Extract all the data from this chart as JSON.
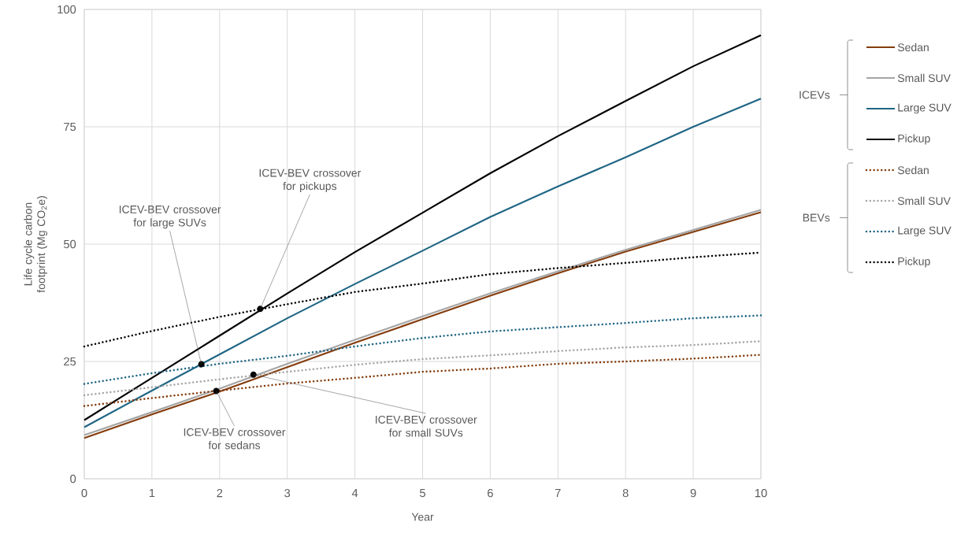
{
  "chart_data": {
    "type": "line",
    "xlabel": "Year",
    "ylabel": "Life cycle carbon footprint (Mg CO$_{2}$e)",
    "x": [
      0,
      1,
      2,
      3,
      4,
      5,
      6,
      7,
      8,
      9,
      10
    ],
    "xlim": [
      0,
      10
    ],
    "xticks": [
      0,
      1,
      2,
      3,
      4,
      5,
      6,
      7,
      8,
      9,
      10
    ],
    "ylim": [
      0,
      100
    ],
    "yticks": [
      0,
      25,
      50,
      75,
      100
    ],
    "grid": true,
    "legend": "right",
    "marker": "none",
    "series": [
      {
        "name": "Sedan",
        "color": "#843c0c",
        "line_style": "solid",
        "values": [
          8.7,
          13.7,
          18.6,
          23.8,
          29.0,
          34.0,
          39.0,
          43.8,
          48.4,
          52.6,
          56.8
        ]
      },
      {
        "name": "Small SUV",
        "color": "#a5a5a5",
        "line_style": "solid",
        "values": [
          9.3,
          14.2,
          19.2,
          24.5,
          29.6,
          34.6,
          39.5,
          44.2,
          48.8,
          53.0,
          57.3
        ]
      },
      {
        "name": "Large SUV",
        "color": "#1f6584",
        "line_style": "solid",
        "values": [
          11.0,
          18.8,
          26.5,
          34.2,
          41.5,
          48.6,
          55.8,
          62.3,
          68.5,
          75.0,
          81.0
        ]
      },
      {
        "name": "Pickup",
        "color": "#000000",
        "line_style": "solid",
        "values": [
          12.5,
          21.5,
          30.5,
          39.5,
          48.3,
          56.7,
          65.1,
          73.0,
          80.5,
          87.9,
          94.5
        ]
      },
      {
        "name": "Sedan",
        "color": "#843c0c",
        "line_style": "dotted",
        "values": [
          15.5,
          17.2,
          18.8,
          20.3,
          21.5,
          22.8,
          23.5,
          24.5,
          25.0,
          25.6,
          26.4
        ]
      },
      {
        "name": "Small SUV",
        "color": "#a5a5a5",
        "line_style": "dotted",
        "values": [
          17.8,
          19.5,
          21.2,
          22.8,
          24.3,
          25.5,
          26.3,
          27.2,
          28.0,
          28.5,
          29.3
        ]
      },
      {
        "name": "Large SUV",
        "color": "#1f6584",
        "line_style": "dotted",
        "values": [
          20.2,
          22.5,
          24.5,
          26.2,
          28.2,
          30.0,
          31.4,
          32.3,
          33.2,
          34.2,
          34.8
        ]
      },
      {
        "name": "Pickup",
        "color": "#000000",
        "line_style": "dotted",
        "values": [
          28.2,
          31.5,
          34.5,
          37.2,
          39.8,
          41.6,
          43.6,
          44.9,
          46.0,
          47.2,
          48.2
        ]
      }
    ],
    "annotations": [
      {
        "text": "ICEV-BEV crossover for large SUVs",
        "x": 1.73,
        "y": 24.4
      },
      {
        "text": "ICEV-BEV crossover for pickups",
        "x": 2.6,
        "y": 36.2
      },
      {
        "text": "ICEV-BEV crossover for sedans",
        "x": 1.95,
        "y": 18.7
      },
      {
        "text": "ICEV-BEV crossover for small SUVs",
        "x": 2.5,
        "y": 22.2
      },
      "ICEVs",
      "BEVs"
    ]
  }
}
